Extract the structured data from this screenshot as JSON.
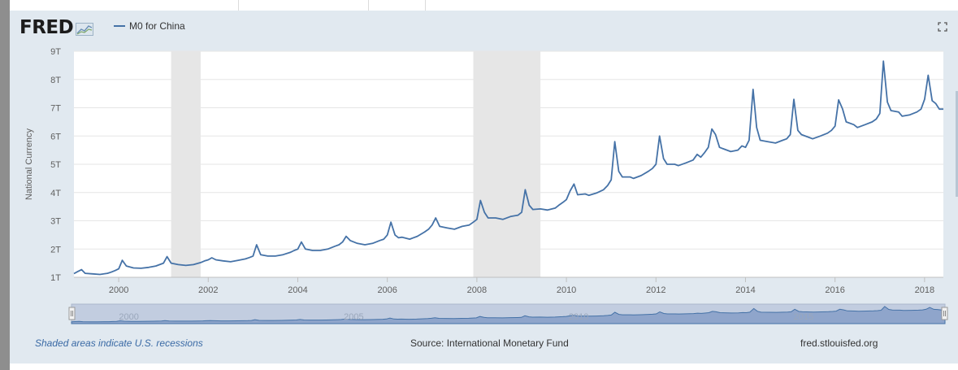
{
  "logo": {
    "text": "FRED"
  },
  "legend": {
    "series_label": "M0 for China"
  },
  "footer": {
    "recession_note": "Shaded areas indicate U.S. recessions",
    "source": "Source: International Monetary Fund",
    "site": "fred.stlouisfed.org"
  },
  "colors": {
    "line": "#4572a7",
    "recession": "#e6e6e6",
    "panel": "#e1e9f0",
    "navigator_fill": "#7d97c4"
  },
  "icons": {
    "logo_mark": "fred-graph-icon",
    "expand": "fullscreen-icon"
  },
  "navigator": {
    "labels": [
      "2000",
      "2005",
      "2010",
      "2015"
    ]
  },
  "chart_data": {
    "type": "line",
    "title": "",
    "xlabel": "",
    "ylabel": "National Currency",
    "xlim": [
      1999.0,
      2018.42
    ],
    "ylim": [
      1,
      9
    ],
    "y_ticks": [
      {
        "v": 1,
        "label": "1T"
      },
      {
        "v": 2,
        "label": "2T"
      },
      {
        "v": 3,
        "label": "3T"
      },
      {
        "v": 4,
        "label": "4T"
      },
      {
        "v": 5,
        "label": "5T"
      },
      {
        "v": 6,
        "label": "6T"
      },
      {
        "v": 7,
        "label": "7T"
      },
      {
        "v": 8,
        "label": "8T"
      },
      {
        "v": 9,
        "label": "9T"
      }
    ],
    "x_ticks": [
      {
        "v": 2000,
        "label": "2000"
      },
      {
        "v": 2002,
        "label": "2002"
      },
      {
        "v": 2004,
        "label": "2004"
      },
      {
        "v": 2006,
        "label": "2006"
      },
      {
        "v": 2008,
        "label": "2008"
      },
      {
        "v": 2010,
        "label": "2010"
      },
      {
        "v": 2012,
        "label": "2012"
      },
      {
        "v": 2014,
        "label": "2014"
      },
      {
        "v": 2016,
        "label": "2016"
      },
      {
        "v": 2018,
        "label": "2018"
      }
    ],
    "recessions": [
      [
        2001.17,
        2001.83
      ],
      [
        2007.92,
        2009.42
      ]
    ],
    "grid": true,
    "series": [
      {
        "name": "M0 for China",
        "points": [
          [
            1999.0,
            1.13
          ],
          [
            1999.08,
            1.2
          ],
          [
            1999.17,
            1.27
          ],
          [
            1999.25,
            1.14
          ],
          [
            1999.42,
            1.12
          ],
          [
            1999.58,
            1.1
          ],
          [
            1999.75,
            1.14
          ],
          [
            1999.83,
            1.18
          ],
          [
            1999.92,
            1.24
          ],
          [
            2000.0,
            1.3
          ],
          [
            2000.08,
            1.6
          ],
          [
            2000.17,
            1.4
          ],
          [
            2000.33,
            1.33
          ],
          [
            2000.5,
            1.32
          ],
          [
            2000.67,
            1.35
          ],
          [
            2000.83,
            1.4
          ],
          [
            2001.0,
            1.5
          ],
          [
            2001.08,
            1.73
          ],
          [
            2001.17,
            1.5
          ],
          [
            2001.33,
            1.45
          ],
          [
            2001.5,
            1.42
          ],
          [
            2001.67,
            1.45
          ],
          [
            2001.83,
            1.52
          ],
          [
            2001.92,
            1.58
          ],
          [
            2002.0,
            1.62
          ],
          [
            2002.08,
            1.69
          ],
          [
            2002.17,
            1.62
          ],
          [
            2002.33,
            1.58
          ],
          [
            2002.5,
            1.55
          ],
          [
            2002.67,
            1.6
          ],
          [
            2002.83,
            1.65
          ],
          [
            2002.92,
            1.7
          ],
          [
            2003.0,
            1.75
          ],
          [
            2003.08,
            2.15
          ],
          [
            2003.17,
            1.8
          ],
          [
            2003.33,
            1.75
          ],
          [
            2003.5,
            1.75
          ],
          [
            2003.67,
            1.8
          ],
          [
            2003.83,
            1.88
          ],
          [
            2003.92,
            1.95
          ],
          [
            2004.0,
            2.0
          ],
          [
            2004.08,
            2.25
          ],
          [
            2004.17,
            2.0
          ],
          [
            2004.33,
            1.95
          ],
          [
            2004.5,
            1.95
          ],
          [
            2004.67,
            2.0
          ],
          [
            2004.83,
            2.1
          ],
          [
            2004.92,
            2.15
          ],
          [
            2005.0,
            2.25
          ],
          [
            2005.08,
            2.45
          ],
          [
            2005.17,
            2.3
          ],
          [
            2005.33,
            2.2
          ],
          [
            2005.5,
            2.15
          ],
          [
            2005.67,
            2.2
          ],
          [
            2005.83,
            2.3
          ],
          [
            2005.92,
            2.35
          ],
          [
            2006.0,
            2.5
          ],
          [
            2006.08,
            2.95
          ],
          [
            2006.17,
            2.5
          ],
          [
            2006.25,
            2.4
          ],
          [
            2006.33,
            2.42
          ],
          [
            2006.5,
            2.35
          ],
          [
            2006.67,
            2.45
          ],
          [
            2006.83,
            2.6
          ],
          [
            2006.92,
            2.7
          ],
          [
            2007.0,
            2.85
          ],
          [
            2007.08,
            3.1
          ],
          [
            2007.17,
            2.8
          ],
          [
            2007.33,
            2.75
          ],
          [
            2007.5,
            2.7
          ],
          [
            2007.67,
            2.8
          ],
          [
            2007.83,
            2.85
          ],
          [
            2007.92,
            2.95
          ],
          [
            2008.0,
            3.05
          ],
          [
            2008.08,
            3.72
          ],
          [
            2008.17,
            3.3
          ],
          [
            2008.25,
            3.1
          ],
          [
            2008.42,
            3.1
          ],
          [
            2008.58,
            3.05
          ],
          [
            2008.75,
            3.15
          ],
          [
            2008.92,
            3.2
          ],
          [
            2009.0,
            3.3
          ],
          [
            2009.08,
            4.1
          ],
          [
            2009.17,
            3.55
          ],
          [
            2009.25,
            3.4
          ],
          [
            2009.42,
            3.42
          ],
          [
            2009.58,
            3.38
          ],
          [
            2009.75,
            3.45
          ],
          [
            2009.83,
            3.55
          ],
          [
            2009.92,
            3.65
          ],
          [
            2010.0,
            3.75
          ],
          [
            2010.08,
            4.05
          ],
          [
            2010.17,
            4.3
          ],
          [
            2010.25,
            3.92
          ],
          [
            2010.42,
            3.95
          ],
          [
            2010.5,
            3.9
          ],
          [
            2010.67,
            3.98
          ],
          [
            2010.83,
            4.1
          ],
          [
            2010.92,
            4.25
          ],
          [
            2011.0,
            4.45
          ],
          [
            2011.08,
            5.8
          ],
          [
            2011.17,
            4.75
          ],
          [
            2011.25,
            4.55
          ],
          [
            2011.42,
            4.55
          ],
          [
            2011.5,
            4.5
          ],
          [
            2011.67,
            4.6
          ],
          [
            2011.83,
            4.75
          ],
          [
            2011.92,
            4.85
          ],
          [
            2012.0,
            5.0
          ],
          [
            2012.08,
            6.0
          ],
          [
            2012.17,
            5.2
          ],
          [
            2012.25,
            5.0
          ],
          [
            2012.42,
            5.0
          ],
          [
            2012.5,
            4.95
          ],
          [
            2012.67,
            5.05
          ],
          [
            2012.83,
            5.15
          ],
          [
            2012.92,
            5.35
          ],
          [
            2013.0,
            5.25
          ],
          [
            2013.08,
            5.4
          ],
          [
            2013.17,
            5.6
          ],
          [
            2013.25,
            6.25
          ],
          [
            2013.33,
            6.05
          ],
          [
            2013.42,
            5.6
          ],
          [
            2013.5,
            5.55
          ],
          [
            2013.67,
            5.45
          ],
          [
            2013.83,
            5.5
          ],
          [
            2013.92,
            5.65
          ],
          [
            2014.0,
            5.6
          ],
          [
            2014.08,
            5.85
          ],
          [
            2014.17,
            7.65
          ],
          [
            2014.25,
            6.3
          ],
          [
            2014.33,
            5.85
          ],
          [
            2014.5,
            5.8
          ],
          [
            2014.67,
            5.75
          ],
          [
            2014.83,
            5.85
          ],
          [
            2014.92,
            5.9
          ],
          [
            2015.0,
            6.05
          ],
          [
            2015.08,
            7.3
          ],
          [
            2015.17,
            6.2
          ],
          [
            2015.25,
            6.05
          ],
          [
            2015.42,
            5.95
          ],
          [
            2015.5,
            5.9
          ],
          [
            2015.67,
            6.0
          ],
          [
            2015.83,
            6.1
          ],
          [
            2015.92,
            6.2
          ],
          [
            2016.0,
            6.35
          ],
          [
            2016.08,
            7.28
          ],
          [
            2016.17,
            6.95
          ],
          [
            2016.25,
            6.5
          ],
          [
            2016.42,
            6.4
          ],
          [
            2016.5,
            6.3
          ],
          [
            2016.67,
            6.4
          ],
          [
            2016.83,
            6.5
          ],
          [
            2016.92,
            6.6
          ],
          [
            2017.0,
            6.8
          ],
          [
            2017.08,
            8.65
          ],
          [
            2017.17,
            7.2
          ],
          [
            2017.25,
            6.9
          ],
          [
            2017.42,
            6.85
          ],
          [
            2017.5,
            6.7
          ],
          [
            2017.67,
            6.75
          ],
          [
            2017.83,
            6.85
          ],
          [
            2017.92,
            6.95
          ],
          [
            2018.0,
            7.3
          ],
          [
            2018.08,
            8.15
          ],
          [
            2018.17,
            7.25
          ],
          [
            2018.25,
            7.15
          ],
          [
            2018.33,
            6.95
          ],
          [
            2018.42,
            6.95
          ]
        ]
      }
    ]
  }
}
